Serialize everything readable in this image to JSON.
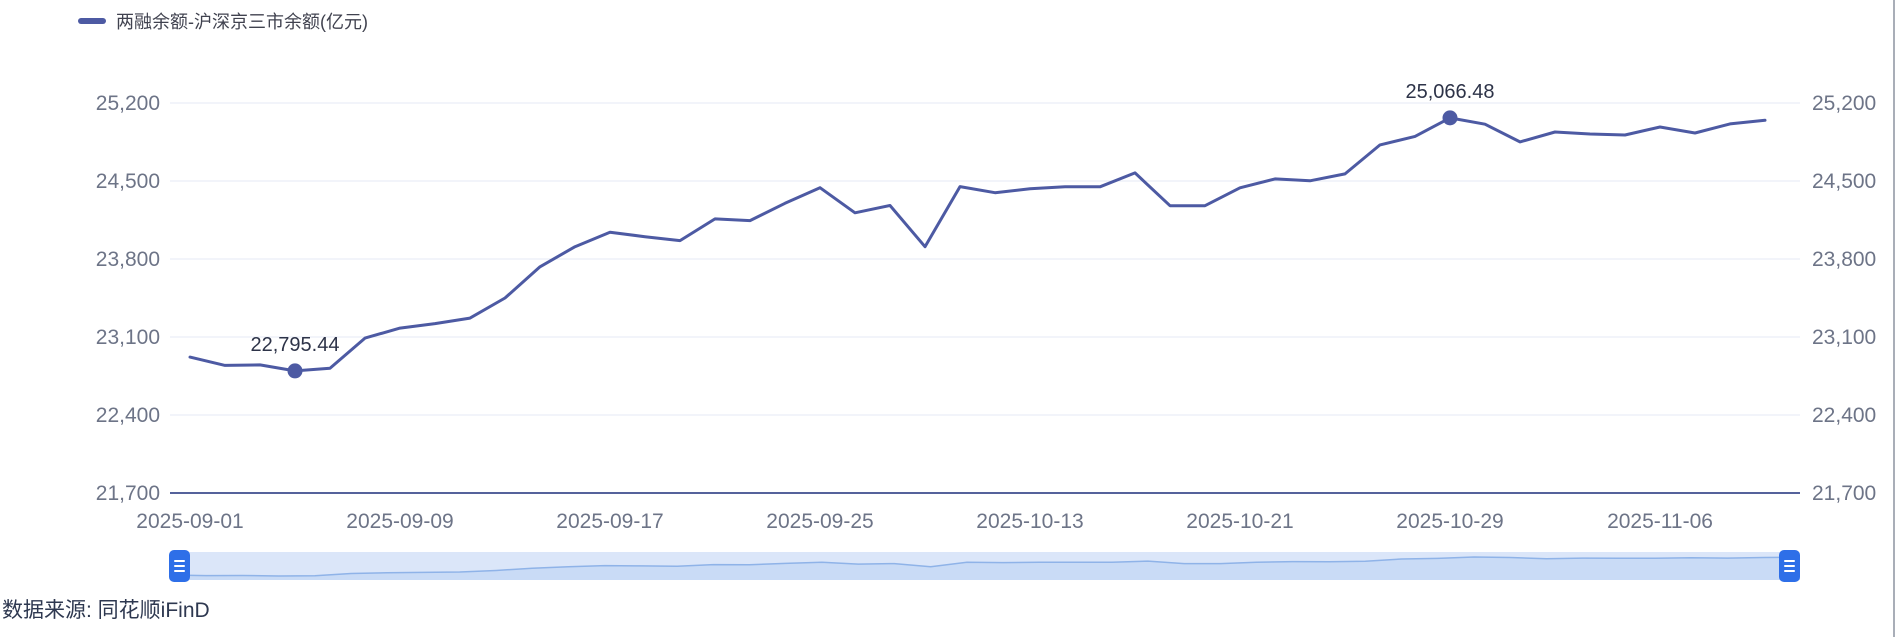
{
  "legend": {
    "label": "两融余额-沪深京三市余额(亿元)"
  },
  "source": {
    "label": "数据来源: 同花顺iFinD"
  },
  "colors": {
    "line": "#4d5aa3",
    "grid": "#e4e9f5",
    "axis_line": "#55629b",
    "axis_text": "#6d7487",
    "annotation_text": "#2d3348",
    "legend_text": "#40424f",
    "dz_track": "#dbe6f9",
    "dz_line": "#8fb3e8",
    "dz_fill": "#c9dbf6",
    "dz_handle": "#2e6fe8",
    "source_text": "#2e3850"
  },
  "chart_data": {
    "type": "line",
    "title": "两融余额-沪深京三市余额(亿元)",
    "ylabel": "",
    "xlabel": "",
    "ylim": [
      21700,
      25200
    ],
    "y_ticks": [
      25200,
      24500,
      23800,
      23100,
      22400,
      21700
    ],
    "grid": true,
    "legend_position": "top-left",
    "x": [
      "2025-09-01",
      "2025-09-02",
      "2025-09-03",
      "2025-09-04",
      "2025-09-05",
      "2025-09-08",
      "2025-09-09",
      "2025-09-10",
      "2025-09-11",
      "2025-09-12",
      "2025-09-15",
      "2025-09-16",
      "2025-09-17",
      "2025-09-18",
      "2025-09-19",
      "2025-09-22",
      "2025-09-23",
      "2025-09-24",
      "2025-09-25",
      "2025-09-26",
      "2025-09-29",
      "2025-09-30",
      "2025-10-09",
      "2025-10-10",
      "2025-10-13",
      "2025-10-14",
      "2025-10-15",
      "2025-10-16",
      "2025-10-17",
      "2025-10-20",
      "2025-10-21",
      "2025-10-22",
      "2025-10-23",
      "2025-10-24",
      "2025-10-27",
      "2025-10-28",
      "2025-10-29",
      "2025-10-30",
      "2025-10-31",
      "2025-11-03",
      "2025-11-04",
      "2025-11-05",
      "2025-11-06",
      "2025-11-07",
      "2025-11-10",
      "2025-11-11"
    ],
    "values": [
      22920,
      22845,
      22850,
      22795.44,
      22820,
      23090,
      23180,
      23220,
      23270,
      23450,
      23730,
      23910,
      24040,
      24000,
      23965,
      24160,
      24145,
      24300,
      24440,
      24215,
      24280,
      23910,
      24450,
      24395,
      24430,
      24448,
      24448,
      24573,
      24278,
      24278,
      24439,
      24519,
      24502,
      24564,
      24824,
      24900,
      25066.48,
      25010,
      24851,
      24940,
      24922,
      24913,
      24985,
      24931,
      25012,
      25045
    ],
    "x_tick_labels": [
      "2025-09-01",
      "2025-09-09",
      "2025-09-17",
      "2025-09-25",
      "2025-10-13",
      "2025-10-21",
      "2025-10-29",
      "2025-11-06"
    ],
    "x_tick_indices": [
      0,
      6,
      12,
      18,
      24,
      30,
      36,
      42
    ],
    "annotations": [
      {
        "index": 3,
        "label": "22,795.44",
        "kind": "min"
      },
      {
        "index": 36,
        "label": "25,066.48",
        "kind": "max"
      }
    ]
  }
}
